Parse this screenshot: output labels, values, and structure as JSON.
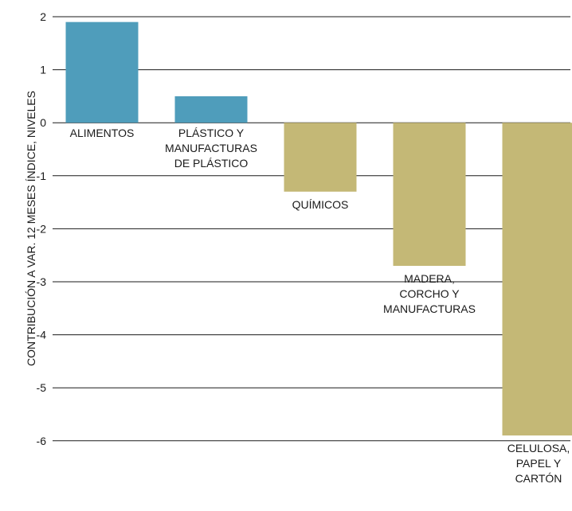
{
  "chart_data": {
    "type": "bar",
    "ylabel": "CONTRIBUCIÓN A VAR. 12 MESES ÍNDICE, NIVELES",
    "ylim": [
      -6,
      2
    ],
    "yticks": [
      2,
      1,
      0,
      -1,
      -2,
      -3,
      -4,
      -5,
      -6
    ],
    "grid": true,
    "categories": [
      [
        "ALIMENTOS"
      ],
      [
        "PLÁSTICO Y",
        "MANUFACTURAS",
        "DE PLÁSTICO"
      ],
      [
        "QUÍMICOS"
      ],
      [
        "MADERA,",
        "CORCHO Y",
        "MANUFACTURAS"
      ],
      [
        "CELULOSA,",
        "PAPEL Y",
        "CARTÓN"
      ]
    ],
    "values": [
      1.9,
      0.5,
      -1.3,
      -2.7,
      -5.9
    ],
    "colors": {
      "positive": "#4f9dbb",
      "negative": "#c4b876"
    }
  }
}
